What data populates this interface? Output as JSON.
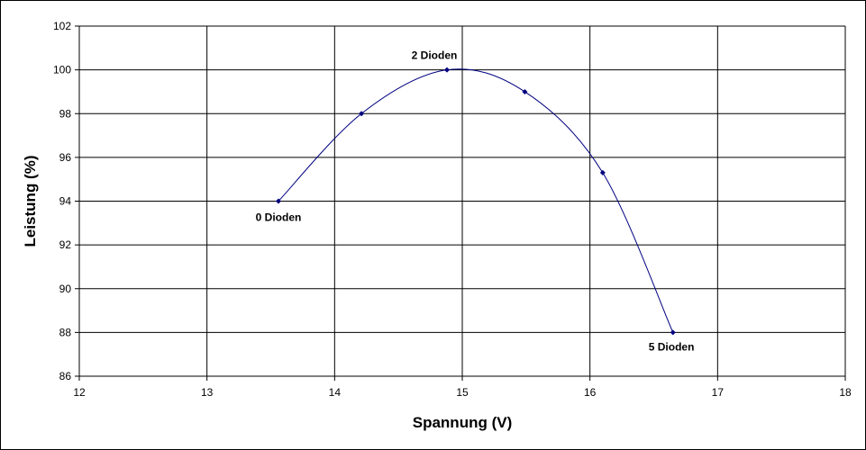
{
  "chart_data": {
    "type": "scatter",
    "xlabel": "Spannung (V)",
    "ylabel": "Leistung (%)",
    "xlim": [
      12,
      18
    ],
    "ylim": [
      86,
      102
    ],
    "xticks": [
      12,
      13,
      14,
      15,
      16,
      17,
      18
    ],
    "yticks": [
      86,
      88,
      90,
      92,
      94,
      96,
      98,
      100,
      102
    ],
    "grid": true,
    "line": "smoothed",
    "colors": {
      "series": "#000080",
      "grid": "#000000",
      "background": "#ffffff"
    },
    "series": [
      {
        "x": [
          13.56,
          14.21,
          14.88,
          15.49,
          16.1,
          16.65
        ],
        "y": [
          94,
          98,
          100,
          99,
          95.3,
          88
        ]
      }
    ],
    "annotations": [
      {
        "text": "0 Dioden",
        "x": 13.56,
        "y": 94,
        "position": "below"
      },
      {
        "text": "2 Dioden",
        "x": 14.88,
        "y": 100,
        "position": "above"
      },
      {
        "text": "5 Dioden",
        "x": 16.65,
        "y": 88,
        "position": "below-right"
      }
    ]
  }
}
